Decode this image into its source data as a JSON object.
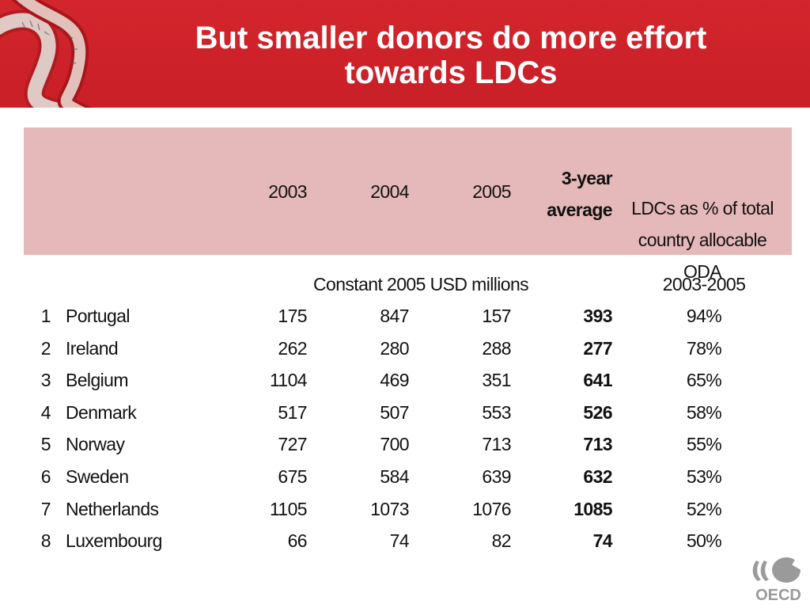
{
  "slide": {
    "title": "But smaller donors do more effort\ntowards LDCs"
  },
  "table": {
    "columns": [
      "2003",
      "2004",
      "2005"
    ],
    "avg_header": "3-year\naverage",
    "ldc_header": "LDCs as % of total\ncountry allocable ODA",
    "units": "Constant 2005 USD millions",
    "period": "2003-2005",
    "rows": [
      {
        "rank": "1",
        "country": "Portugal",
        "y2003": "175",
        "y2004": "847",
        "y2005": "157",
        "avg": "393",
        "pct": "94%"
      },
      {
        "rank": "2",
        "country": "Ireland",
        "y2003": "262",
        "y2004": "280",
        "y2005": "288",
        "avg": "277",
        "pct": "78%"
      },
      {
        "rank": "3",
        "country": "Belgium",
        "y2003": "1104",
        "y2004": "469",
        "y2005": "351",
        "avg": "641",
        "pct": "65%"
      },
      {
        "rank": "4",
        "country": "Denmark",
        "y2003": "517",
        "y2004": "507",
        "y2005": "553",
        "avg": "526",
        "pct": "58%"
      },
      {
        "rank": "5",
        "country": "Norway",
        "y2003": "727",
        "y2004": "700",
        "y2005": "713",
        "avg": "713",
        "pct": "55%"
      },
      {
        "rank": "6",
        "country": "Sweden",
        "y2003": "675",
        "y2004": "584",
        "y2005": "639",
        "avg": "632",
        "pct": "53%"
      },
      {
        "rank": "7",
        "country": "Netherlands",
        "y2003": "1105",
        "y2004": "1073",
        "y2005": "1076",
        "avg": "1085",
        "pct": "52%"
      },
      {
        "rank": "8",
        "country": "Luxembourg",
        "y2003": "66",
        "y2004": "74",
        "y2005": "82",
        "avg": "74",
        "pct": "50%"
      }
    ]
  },
  "logo": {
    "name": "oecd-logo",
    "text": "OECD"
  },
  "colors": {
    "banner": "#d3252c",
    "header_band": "#e5b9b9"
  }
}
